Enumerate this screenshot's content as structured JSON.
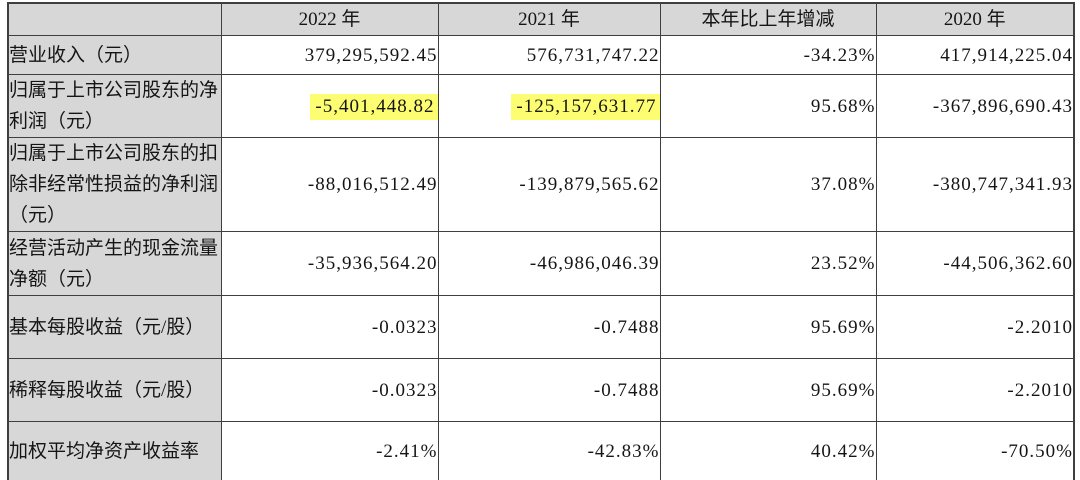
{
  "table": {
    "title_semantic": "主要会计数据和财务指标",
    "headers": [
      "",
      "2022 年",
      "2021 年",
      "本年比上年增减",
      "2020 年"
    ],
    "rows": [
      {
        "label": "营业收入（元）",
        "values": [
          "379,295,592.45",
          "576,731,747.22",
          "-34.23%",
          "417,914,225.04"
        ]
      },
      {
        "label": "归属于上市公司股东的净利润（元）",
        "values": [
          "-5,401,448.82",
          "-125,157,631.77",
          "95.68%",
          "-367,896,690.43"
        ],
        "highlighted_values": [
          0,
          1
        ]
      },
      {
        "label": "归属于上市公司股东的扣除非经常性损益的净利润（元）",
        "values": [
          "-88,016,512.49",
          "-139,879,565.62",
          "37.08%",
          "-380,747,341.93"
        ]
      },
      {
        "label": "经营活动产生的现金流量净额（元）",
        "values": [
          "-35,936,564.20",
          "-46,986,046.39",
          "23.52%",
          "-44,506,362.60"
        ]
      },
      {
        "label": "基本每股收益（元/股）",
        "values": [
          "-0.0323",
          "-0.7488",
          "95.69%",
          "-2.2010"
        ]
      },
      {
        "label": "稀释每股收益（元/股）",
        "values": [
          "-0.0323",
          "-0.7488",
          "95.69%",
          "-2.2010"
        ]
      },
      {
        "label": "加权平均净资产收益率",
        "values": [
          "-2.41%",
          "-42.83%",
          "40.42%",
          "-70.50%"
        ]
      }
    ],
    "colors": {
      "header_background": "#d7d7d7",
      "label_column_background": "#d7d7d7",
      "highlight": "#fdfd72",
      "border": "#3f3f3f",
      "text": "#151515"
    }
  }
}
